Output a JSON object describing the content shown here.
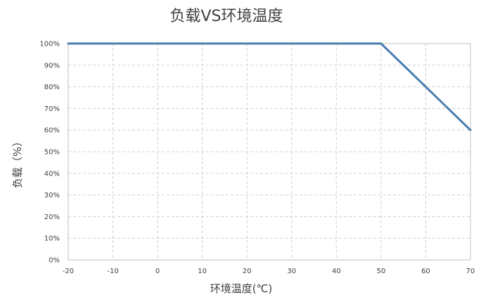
{
  "chart_data": {
    "type": "line",
    "title": "负载VS环境温度",
    "xlabel": "环境温度(℃)",
    "ylabel": "负载（%）",
    "xlim": [
      -20,
      70
    ],
    "ylim": [
      0,
      100
    ],
    "x_ticks": [
      -20,
      -10,
      0,
      10,
      20,
      30,
      40,
      50,
      60,
      70
    ],
    "x_tick_labels": [
      "-20",
      "-10",
      "0",
      "10",
      "20",
      "30",
      "40",
      "50",
      "60",
      "70"
    ],
    "y_ticks": [
      0,
      10,
      20,
      30,
      40,
      50,
      60,
      70,
      80,
      90,
      100
    ],
    "y_tick_labels": [
      "0%",
      "10%",
      "20%",
      "30%",
      "40%",
      "50%",
      "60%",
      "70%",
      "80%",
      "90%",
      "100%"
    ],
    "grid": true,
    "legend": "none",
    "series": [
      {
        "x": [
          -20,
          50,
          70
        ],
        "y": [
          100,
          100,
          60
        ],
        "color": "#4a7eb0"
      }
    ]
  }
}
